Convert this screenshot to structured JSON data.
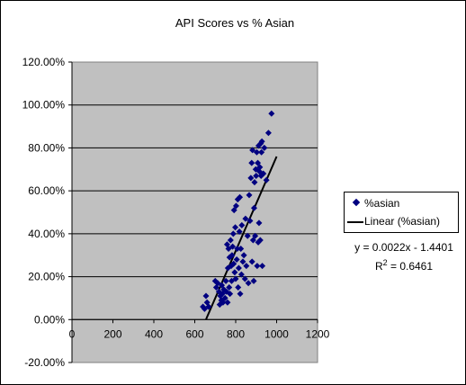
{
  "chart_data": {
    "type": "scatter",
    "title": "API Scores vs % Asian",
    "xlabel": "",
    "ylabel": "",
    "xlim": [
      0,
      1200
    ],
    "ylim": [
      -0.2,
      1.2
    ],
    "x_ticks": [
      "0",
      "200",
      "400",
      "600",
      "800",
      "1000",
      "1200"
    ],
    "y_ticks": [
      "120.00%",
      "100.00%",
      "80.00%",
      "60.00%",
      "40.00%",
      "20.00%",
      "0.00%",
      "-20.00%"
    ],
    "grid": "horizontal",
    "legend_position": "right",
    "series": [
      {
        "name": "%asian",
        "color": "#000080",
        "marker": "diamond",
        "points": [
          [
            640,
            0.06
          ],
          [
            648,
            0.05
          ],
          [
            655,
            0.11
          ],
          [
            660,
            0.08
          ],
          [
            668,
            0.06
          ],
          [
            700,
            0.18
          ],
          [
            705,
            0.15
          ],
          [
            712,
            0.17
          ],
          [
            718,
            0.13
          ],
          [
            722,
            0.07
          ],
          [
            725,
            0.11
          ],
          [
            730,
            0.09
          ],
          [
            732,
            0.16
          ],
          [
            735,
            0.12
          ],
          [
            738,
            0.08
          ],
          [
            742,
            0.14
          ],
          [
            748,
            0.1
          ],
          [
            752,
            0.18
          ],
          [
            755,
            0.13
          ],
          [
            758,
            0.35
          ],
          [
            760,
            0.08
          ],
          [
            762,
            0.24
          ],
          [
            765,
            0.33
          ],
          [
            768,
            0.15
          ],
          [
            770,
            0.29
          ],
          [
            772,
            0.12
          ],
          [
            775,
            0.37
          ],
          [
            778,
            0.25
          ],
          [
            780,
            0.18
          ],
          [
            782,
            0.3
          ],
          [
            785,
            0.34
          ],
          [
            788,
            0.4
          ],
          [
            790,
            0.26
          ],
          [
            792,
            0.51
          ],
          [
            795,
            0.22
          ],
          [
            798,
            0.43
          ],
          [
            800,
            0.19
          ],
          [
            802,
            0.53
          ],
          [
            805,
            0.28
          ],
          [
            808,
            0.33
          ],
          [
            810,
            0.56
          ],
          [
            812,
            0.15
          ],
          [
            815,
            0.24
          ],
          [
            818,
            0.41
          ],
          [
            820,
            0.57
          ],
          [
            822,
            0.12
          ],
          [
            825,
            0.33
          ],
          [
            828,
            0.21
          ],
          [
            830,
            0.44
          ],
          [
            835,
            0.27
          ],
          [
            840,
            0.3
          ],
          [
            845,
            0.19
          ],
          [
            848,
            0.47
          ],
          [
            852,
            0.25
          ],
          [
            858,
            0.39
          ],
          [
            862,
            0.17
          ],
          [
            866,
            0.58
          ],
          [
            870,
            0.46
          ],
          [
            874,
            0.66
          ],
          [
            878,
            0.73
          ],
          [
            880,
            0.27
          ],
          [
            882,
            0.79
          ],
          [
            885,
            0.37
          ],
          [
            888,
            0.18
          ],
          [
            890,
            0.52
          ],
          [
            892,
            0.64
          ],
          [
            895,
            0.39
          ],
          [
            898,
            0.7
          ],
          [
            900,
            0.67
          ],
          [
            903,
            0.78
          ],
          [
            905,
            0.25
          ],
          [
            908,
            0.73
          ],
          [
            910,
            0.36
          ],
          [
            912,
            0.81
          ],
          [
            914,
            0.45
          ],
          [
            916,
            0.69
          ],
          [
            918,
            0.71
          ],
          [
            920,
            0.37
          ],
          [
            922,
            0.82
          ],
          [
            924,
            0.67
          ],
          [
            926,
            0.78
          ],
          [
            928,
            0.83
          ],
          [
            930,
            0.25
          ],
          [
            935,
            0.68
          ],
          [
            940,
            0.8
          ],
          [
            950,
            0.65
          ],
          [
            960,
            0.87
          ],
          [
            975,
            0.96
          ]
        ]
      },
      {
        "name": "Linear (%asian)",
        "type": "line",
        "color": "#000000",
        "slope": 0.0022,
        "intercept": -1.4401,
        "x_range": [
          655,
          1000
        ]
      }
    ],
    "annotations": {
      "equation": "y = 0.0022x - 1.4401",
      "r2_prefix": "R",
      "r2_exp": "2",
      "r2_value": " = 0.6461"
    }
  }
}
